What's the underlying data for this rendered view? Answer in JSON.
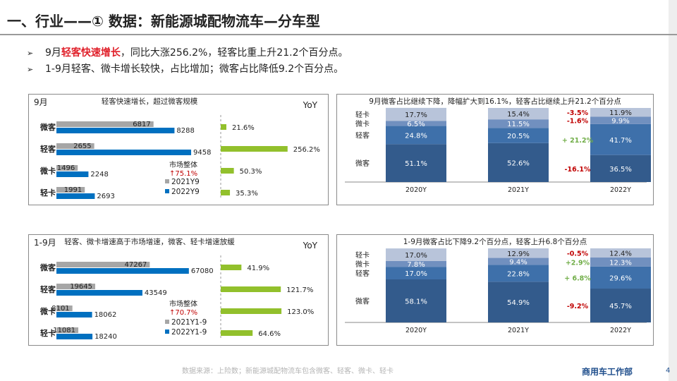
{
  "header": {
    "title": "一、行业——① 数据：新能源城配物流车—分车型",
    "bullets": [
      {
        "marker": "➢",
        "pre": "9月",
        "highlight": "轻客快速增长",
        "post": "，同比大涨256.2%，轻客比重上升21.2个百分点。"
      },
      {
        "marker": "➢",
        "pre": "1-9月轻客、微卡增长较快，占比增加；微客占比降低9.2个百分点。",
        "highlight": "",
        "post": ""
      }
    ]
  },
  "footer": {
    "source": "数据来源：上险数；新能源城配物流车包含微客、轻客、微卡、轻卡",
    "dept": "商用车工作部",
    "page": "4"
  },
  "colors": {
    "prev": "#a6a6a6",
    "curr": "#0070c0",
    "yoy": "#92c02c",
    "share_wk": "#335b8c",
    "share_qk": "#3e70aa",
    "share_wka": "#7190bf",
    "share_qka": "#b8c4da",
    "neg": "#c00000",
    "pos": "#70ad47"
  },
  "chart_data": [
    {
      "type": "bar",
      "orientation": "horizontal",
      "period": "9月",
      "title": "轻客快速增长，超过微客规模",
      "categories": [
        "微客",
        "轻客",
        "微卡",
        "轻卡"
      ],
      "series": [
        {
          "name": "2021Y9",
          "values": [
            6817,
            2655,
            1496,
            1991
          ]
        },
        {
          "name": "2022Y9",
          "values": [
            8288,
            9458,
            2248,
            2693
          ]
        }
      ],
      "xlim": [
        0,
        10000
      ]
    },
    {
      "type": "bar",
      "orientation": "horizontal",
      "label": "YoY",
      "categories": [
        "微客",
        "轻客",
        "微卡",
        "轻卡"
      ],
      "values": [
        21.6,
        256.2,
        50.3,
        35.3
      ],
      "value_labels": [
        "21.6%",
        "256.2%",
        "50.3%",
        "35.3%"
      ],
      "note": "市场整体",
      "note_value": "↑75.1%"
    },
    {
      "type": "bar",
      "stacked": true,
      "title": "9月微客占比继续下降，降幅扩大到16.1%，轻客占比继续上升21.2个百分点",
      "categories": [
        "2020Y",
        "2021Y",
        "2022Y"
      ],
      "series": [
        {
          "name": "微客",
          "values": [
            51.1,
            52.6,
            36.5
          ]
        },
        {
          "name": "轻客",
          "values": [
            24.8,
            20.5,
            41.7
          ]
        },
        {
          "name": "微卡",
          "values": [
            6.5,
            11.5,
            9.9
          ]
        },
        {
          "name": "轻卡",
          "values": [
            17.7,
            15.4,
            11.9
          ]
        }
      ],
      "changes": [
        "-16.1%",
        "+ 21.2%",
        "-1.6%",
        "-3.5%"
      ],
      "ylim": [
        0,
        100
      ]
    },
    {
      "type": "bar",
      "orientation": "horizontal",
      "period": "1-9月",
      "title": "轻客、微卡增速高于市场增速，微客、轻卡增速放缓",
      "categories": [
        "微客",
        "轻客",
        "微卡",
        "轻卡"
      ],
      "series": [
        {
          "name": "2021Y1-9",
          "values": [
            47267,
            19645,
            8101,
            11081
          ]
        },
        {
          "name": "2022Y1-9",
          "values": [
            67080,
            43549,
            18062,
            18240
          ]
        }
      ],
      "xlim": [
        0,
        70000
      ]
    },
    {
      "type": "bar",
      "orientation": "horizontal",
      "label": "YoY",
      "categories": [
        "微客",
        "轻客",
        "微卡",
        "轻卡"
      ],
      "values": [
        41.9,
        121.7,
        123.0,
        64.6
      ],
      "value_labels": [
        "41.9%",
        "121.7%",
        "123.0%",
        "64.6%"
      ],
      "note": "市场整体",
      "note_value": "↑70.7%"
    },
    {
      "type": "bar",
      "stacked": true,
      "title": "1-9月微客占比下降9.2个百分点，轻客上升6.8个百分点",
      "categories": [
        "2020Y",
        "2021Y",
        "2022Y"
      ],
      "series": [
        {
          "name": "微客",
          "values": [
            58.1,
            54.9,
            45.7
          ]
        },
        {
          "name": "轻客",
          "values": [
            17.0,
            22.8,
            29.6
          ]
        },
        {
          "name": "微卡",
          "values": [
            7.8,
            9.4,
            12.3
          ]
        },
        {
          "name": "轻卡",
          "values": [
            17.0,
            12.9,
            12.4
          ]
        }
      ],
      "changes": [
        "-9.2%",
        "+ 6.8%",
        "+2.9%",
        "-0.5%"
      ],
      "ylim": [
        0,
        100
      ]
    }
  ]
}
